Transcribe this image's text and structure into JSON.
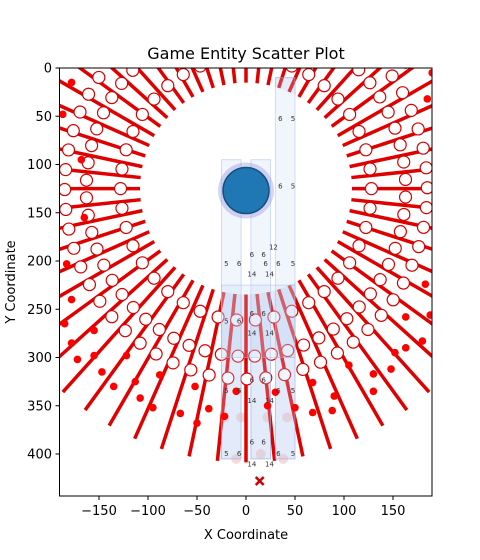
{
  "chart_data": {
    "type": "scatter",
    "title": "Game Entity Scatter Plot",
    "xlabel": "X Coordinate",
    "ylabel": "Y Coordinate",
    "xlim": [
      -190,
      190
    ],
    "ylim": [
      0,
      445
    ],
    "y_inverted": true,
    "x_ticks": [
      -150,
      -100,
      -50,
      0,
      50,
      100,
      150
    ],
    "y_ticks": [
      0,
      50,
      100,
      150,
      200,
      250,
      300,
      350,
      400
    ],
    "grid": false,
    "legend": "none",
    "colors": {
      "ring_lines": "#e00000",
      "ring_markers_edge": "#d40000",
      "ring_markers_face": "#ffffff",
      "enemy": "#ff0000",
      "player_fill": "#1f77b4",
      "player_halo": "#8a8ae0",
      "lanes": "#c8d6f5",
      "lane_markers": "#a9bce8",
      "target": "#cc0000"
    },
    "ring": {
      "center": [
        0,
        125
      ],
      "inner_radius": 108,
      "outer_radius": 190,
      "outer_count": 60,
      "inner_count": 42
    },
    "player": {
      "x": 0,
      "y": 127,
      "label": "player"
    },
    "target_marker": {
      "x": 14,
      "y": 428,
      "marker": "x"
    },
    "lanes": [
      {
        "x_range": [
          -25,
          -5
        ],
        "y_range": [
          95,
          405
        ]
      },
      {
        "x_range": [
          5,
          25
        ],
        "y_range": [
          95,
          405
        ]
      },
      {
        "x_range": [
          30,
          50
        ],
        "y_range": [
          10,
          405
        ]
      },
      {
        "x_range": [
          -25,
          50
        ],
        "y_range": [
          225,
          300
        ]
      }
    ],
    "lane_labels": [
      {
        "x": -20,
        "y": 205,
        "text": "5"
      },
      {
        "x": -7,
        "y": 205,
        "text": "6"
      },
      {
        "x": 20,
        "y": 205,
        "text": "6"
      },
      {
        "x": 33,
        "y": 205,
        "text": "6"
      },
      {
        "x": 48,
        "y": 205,
        "text": "5"
      },
      {
        "x": 6,
        "y": 216,
        "text": "14"
      },
      {
        "x": 24,
        "y": 216,
        "text": "14"
      },
      {
        "x": 6,
        "y": 196,
        "text": "6"
      },
      {
        "x": 18,
        "y": 196,
        "text": "6"
      },
      {
        "x": 28,
        "y": 188,
        "text": "12"
      },
      {
        "x": 35,
        "y": 55,
        "text": "6"
      },
      {
        "x": 48,
        "y": 55,
        "text": "5"
      },
      {
        "x": 35,
        "y": 125,
        "text": "6"
      },
      {
        "x": 48,
        "y": 125,
        "text": "5"
      },
      {
        "x": -20,
        "y": 265,
        "text": "5"
      },
      {
        "x": -7,
        "y": 265,
        "text": "6"
      },
      {
        "x": 6,
        "y": 257,
        "text": "6"
      },
      {
        "x": 18,
        "y": 257,
        "text": "6"
      },
      {
        "x": 6,
        "y": 277,
        "text": "14"
      },
      {
        "x": 24,
        "y": 277,
        "text": "14"
      },
      {
        "x": 6,
        "y": 326,
        "text": "6"
      },
      {
        "x": 18,
        "y": 326,
        "text": "6"
      },
      {
        "x": -20,
        "y": 337,
        "text": "5"
      },
      {
        "x": -7,
        "y": 337,
        "text": "6"
      },
      {
        "x": 33,
        "y": 337,
        "text": "6"
      },
      {
        "x": 48,
        "y": 337,
        "text": "5"
      },
      {
        "x": 6,
        "y": 347,
        "text": "14"
      },
      {
        "x": 24,
        "y": 347,
        "text": "14"
      },
      {
        "x": -20,
        "y": 402,
        "text": "5"
      },
      {
        "x": -7,
        "y": 402,
        "text": "6"
      },
      {
        "x": 6,
        "y": 390,
        "text": "6"
      },
      {
        "x": 18,
        "y": 390,
        "text": "6"
      },
      {
        "x": 33,
        "y": 402,
        "text": "6"
      },
      {
        "x": 48,
        "y": 402,
        "text": "5"
      },
      {
        "x": 6,
        "y": 413,
        "text": "14"
      },
      {
        "x": 24,
        "y": 413,
        "text": "14"
      }
    ],
    "enemies": [
      {
        "x": -178,
        "y": 15
      },
      {
        "x": -187,
        "y": 48
      },
      {
        "x": -168,
        "y": 95
      },
      {
        "x": -165,
        "y": 155
      },
      {
        "x": -183,
        "y": 203
      },
      {
        "x": -178,
        "y": 240
      },
      {
        "x": -185,
        "y": 265
      },
      {
        "x": -178,
        "y": 285
      },
      {
        "x": -172,
        "y": 302
      },
      {
        "x": -155,
        "y": 272
      },
      {
        "x": -155,
        "y": 298
      },
      {
        "x": -147,
        "y": 315
      },
      {
        "x": -135,
        "y": 330
      },
      {
        "x": -122,
        "y": 298
      },
      {
        "x": -113,
        "y": 325
      },
      {
        "x": -108,
        "y": 342
      },
      {
        "x": -95,
        "y": 352
      },
      {
        "x": -88,
        "y": 318
      },
      {
        "x": -67,
        "y": 358
      },
      {
        "x": -52,
        "y": 330
      },
      {
        "x": -50,
        "y": 368
      },
      {
        "x": -38,
        "y": 353
      },
      {
        "x": -22,
        "y": 361
      },
      {
        "x": -10,
        "y": 335
      },
      {
        "x": 22,
        "y": 350
      },
      {
        "x": 30,
        "y": 336
      },
      {
        "x": 50,
        "y": 352
      },
      {
        "x": 68,
        "y": 326
      },
      {
        "x": 68,
        "y": 357
      },
      {
        "x": 88,
        "y": 355
      },
      {
        "x": 90,
        "y": 340
      },
      {
        "x": 105,
        "y": 308
      },
      {
        "x": 130,
        "y": 317
      },
      {
        "x": 130,
        "y": 335
      },
      {
        "x": 148,
        "y": 312
      },
      {
        "x": 152,
        "y": 295
      },
      {
        "x": 163,
        "y": 290
      },
      {
        "x": 163,
        "y": 258
      },
      {
        "x": 180,
        "y": 283
      },
      {
        "x": 183,
        "y": 224
      },
      {
        "x": 188,
        "y": 256
      },
      {
        "x": 185,
        "y": 32
      },
      {
        "x": 190,
        "y": 5
      },
      {
        "x": 163,
        "y": -3
      }
    ],
    "faint_markers": [
      {
        "x": -22,
        "y": 362
      },
      {
        "x": -5,
        "y": 362
      },
      {
        "x": 22,
        "y": 362
      },
      {
        "x": 42,
        "y": 362
      },
      {
        "x": -10,
        "y": 405
      },
      {
        "x": 15,
        "y": 400
      },
      {
        "x": 38,
        "y": 405
      }
    ]
  }
}
